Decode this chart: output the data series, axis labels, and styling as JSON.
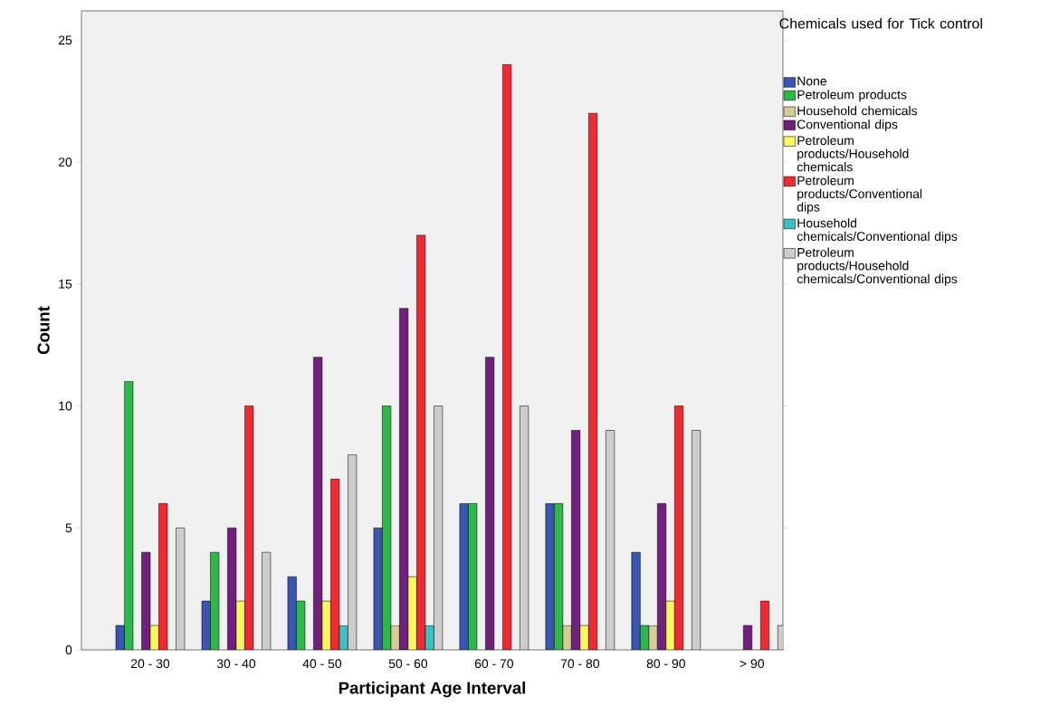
{
  "chart_data": {
    "type": "bar",
    "xlabel": "Participant Age Interval",
    "ylabel": "Count",
    "legend_title": "Chemicals used for Tick control",
    "categories": [
      "20 - 30",
      "30 - 40",
      "40 - 50",
      "50 - 60",
      "60 - 70",
      "70 - 80",
      "80 - 90",
      "> 90"
    ],
    "series": [
      {
        "name": "None",
        "color": "#3a56b0",
        "values": [
          1,
          2,
          3,
          5,
          6,
          6,
          4,
          null
        ]
      },
      {
        "name": "Petroleum products",
        "color": "#2eb84a",
        "values": [
          11,
          4,
          2,
          10,
          6,
          6,
          1,
          null
        ]
      },
      {
        "name": "Household chemicals",
        "color": "#d4cc96",
        "values": [
          null,
          null,
          null,
          1,
          null,
          1,
          1,
          null
        ]
      },
      {
        "name": "Conventional dips",
        "color": "#72207e",
        "values": [
          4,
          5,
          12,
          14,
          12,
          9,
          6,
          1
        ]
      },
      {
        "name": "Petroleum products/Household chemicals",
        "color": "#fbf660",
        "values": [
          1,
          2,
          2,
          3,
          null,
          1,
          2,
          null
        ]
      },
      {
        "name": "Petroleum products/Conventional dips",
        "color": "#ee2a33",
        "values": [
          6,
          10,
          7,
          17,
          24,
          22,
          10,
          2
        ]
      },
      {
        "name": "Household chemicals/Conventional dips",
        "color": "#3dbfc4",
        "values": [
          null,
          null,
          1,
          1,
          null,
          null,
          null,
          null
        ]
      },
      {
        "name": "Petroleum products/Household chemicals/Conventional dips",
        "color": "#cccccc",
        "values": [
          5,
          4,
          8,
          10,
          10,
          9,
          9,
          1
        ]
      }
    ],
    "ylim": [
      0,
      26.2
    ],
    "yticks": [
      0,
      5,
      10,
      15,
      20,
      25
    ],
    "grid": false,
    "legend": "right"
  }
}
